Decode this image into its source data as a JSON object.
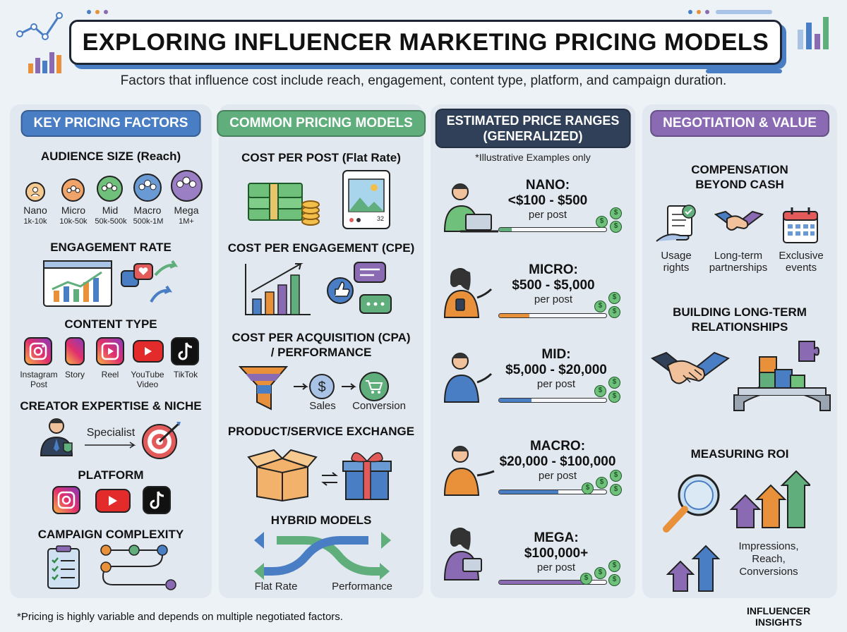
{
  "header": {
    "title": "EXPLORING INFLUENCER MARKETING PRICING MODELS",
    "subtitle": "Factors that influence cost include reach, engagement, content type, platform, and campaign duration."
  },
  "colors": {
    "key_factors": "#4a7ec4",
    "pricing_models": "#5fae7c",
    "price_ranges": "#2f4058",
    "negotiation": "#8a6bb3"
  },
  "key_factors": {
    "heading": "KEY PRICING FACTORS",
    "audience_title": "AUDIENCE SIZE (Reach)",
    "tiers": [
      {
        "name": "Nano",
        "range": "1k-10k"
      },
      {
        "name": "Micro",
        "range": "10k-50k"
      },
      {
        "name": "Mid",
        "range": "50k-500k"
      },
      {
        "name": "Macro",
        "range": "500k-1M"
      },
      {
        "name": "Mega",
        "range": "1M+"
      }
    ],
    "engagement_title": "ENGAGEMENT RATE",
    "content_title": "CONTENT TYPE",
    "content_types": [
      {
        "line1": "Instagram",
        "line2": "Post"
      },
      {
        "line1": "Story",
        "line2": ""
      },
      {
        "line1": "Reel",
        "line2": ""
      },
      {
        "line1": "YouTube",
        "line2": "Video"
      },
      {
        "line1": "TikTok",
        "line2": ""
      }
    ],
    "expertise_title": "CREATOR EXPERTISE & NICHE",
    "specialist_label": "Specialist",
    "platform_title": "PLATFORM",
    "complexity_title": "CAMPAIGN COMPLEXITY"
  },
  "pricing_models": {
    "heading": "COMMON PRICING MODELS",
    "flat_rate_title": "COST PER POST (Flat Rate)",
    "cpe_title": "COST PER ENGAGEMENT (CPE)",
    "cpa_title_line1": "COST PER ACQUISITION (CPA)",
    "cpa_title_line2": "/ PERFORMANCE",
    "sales_label": "Sales",
    "conversion_label": "Conversion",
    "exchange_title": "PRODUCT/SERVICE EXCHANGE",
    "hybrid_title": "HYBRID MODELS",
    "hybrid_left": "Flat Rate",
    "hybrid_right": "Performance",
    "post_count": "32"
  },
  "price_ranges": {
    "heading_line1": "ESTIMATED PRICE RANGES",
    "heading_line2": "(GENERALIZED)",
    "note": "*Illustrative Examples only",
    "tiers": [
      {
        "name": "NANO:",
        "price": "<$100 - $500",
        "unit": "per post",
        "fill": 0.12,
        "color": "#5fae7c"
      },
      {
        "name": "MICRO:",
        "price": "$500 - $5,000",
        "unit": "per post",
        "fill": 0.28,
        "color": "#e8913a"
      },
      {
        "name": "MID:",
        "price": "$5,000 - $20,000",
        "unit": "per post",
        "fill": 0.3,
        "color": "#4a7ec4"
      },
      {
        "name": "MACRO:",
        "price": "$20,000 - $100,000",
        "unit": "per post",
        "fill": 0.55,
        "color": "#4a7ec4"
      },
      {
        "name": "MEGA:",
        "price": "$100,000+",
        "unit": "per post",
        "fill": 0.8,
        "color": "#8a6bb3"
      }
    ]
  },
  "negotiation": {
    "heading": "NEGOTIATION & VALUE",
    "compensation_title_line1": "COMPENSATION",
    "compensation_title_line2": "BEYOND CASH",
    "comp_items": [
      {
        "line1": "Usage",
        "line2": "rights"
      },
      {
        "line1": "Long-term",
        "line2": "partnerships"
      },
      {
        "line1": "Exclusive",
        "line2": "events"
      }
    ],
    "relationships_line1": "BUILDING LONG-TERM",
    "relationships_line2": "RELATIONSHIPS",
    "roi_title": "MEASURING ROI",
    "roi_line1": "Impressions,",
    "roi_line2": "Reach,",
    "roi_line3": "Conversions"
  },
  "footer": {
    "note": "*Pricing is highly variable and depends on multiple negotiated factors.",
    "brand_line1": "INFLUENCER",
    "brand_line2": "INSIGHTS"
  }
}
